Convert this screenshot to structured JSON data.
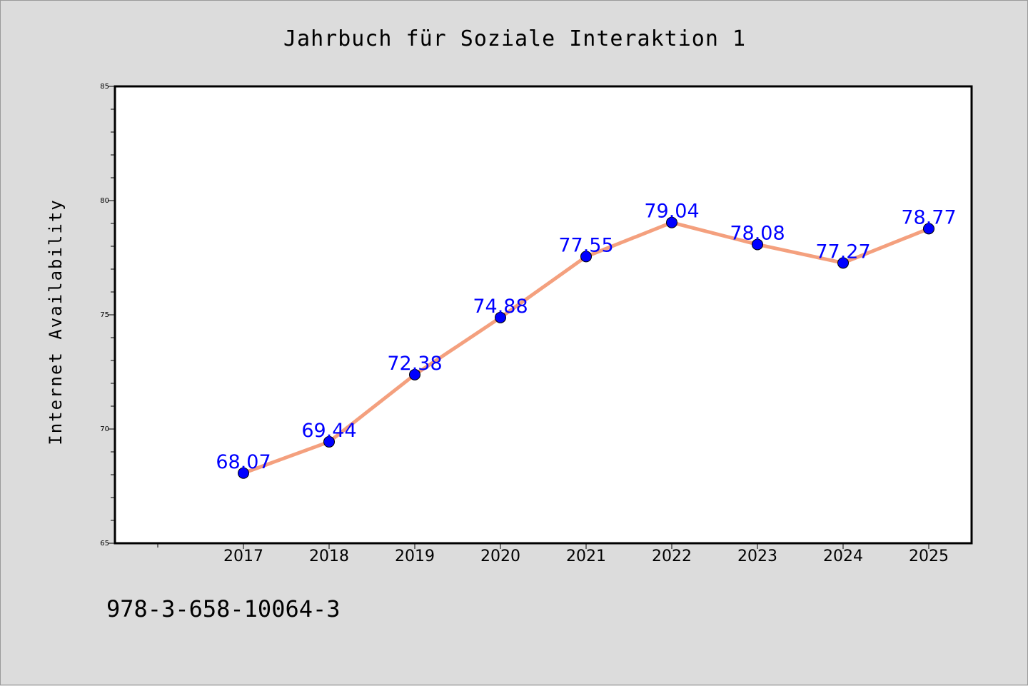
{
  "chart_data": {
    "type": "line",
    "title": "Jahrbuch für Soziale Interaktion 1",
    "xlabel": "",
    "ylabel": "Internet Availability",
    "x": [
      "2017",
      "2018",
      "2019",
      "2020",
      "2021",
      "2022",
      "2023",
      "2024",
      "2025"
    ],
    "series": [
      {
        "values": [
          68.07,
          69.44,
          72.38,
          74.88,
          77.55,
          79.04,
          78.08,
          77.27,
          78.77
        ],
        "data_labels": [
          "68.07",
          "69.44",
          "72.38",
          "74.88",
          "77.55",
          "79.04",
          "78.08",
          "77.27",
          "78.77"
        ],
        "line_color": "#f4a07e",
        "marker_color": "#0000ff"
      }
    ],
    "ylim": [
      65,
      85
    ],
    "yticks": [
      "65",
      "70",
      "75",
      "80",
      "85"
    ],
    "grid": false,
    "legend": "none",
    "annotation": "978-3-658-10064-3",
    "label_color": "#0000ff"
  }
}
